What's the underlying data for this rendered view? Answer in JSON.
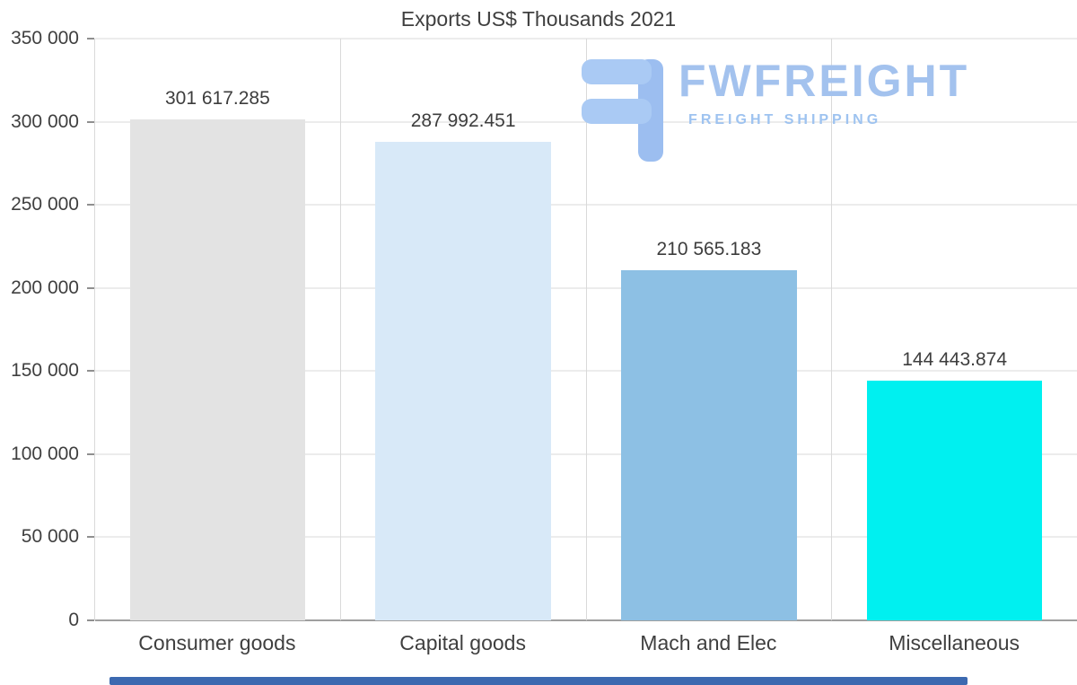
{
  "chart_data": {
    "type": "bar",
    "title": "Exports US$ Thousands 2021",
    "categories": [
      "Consumer goods",
      "Capital goods",
      "Mach and Elec",
      "Miscellaneous"
    ],
    "values": [
      301617.285,
      287992.451,
      210565.183,
      144443.874
    ],
    "value_labels": [
      "301 617.285",
      "287 992.451",
      "210 565.183",
      "144 443.874"
    ],
    "bar_colors": [
      "#e3e3e3",
      "#d8e9f8",
      "#8dc0e4",
      "#00f0f0"
    ],
    "xlabel": "",
    "ylabel": "",
    "ylim": [
      0,
      350000
    ],
    "yticks": [
      {
        "value": 350000,
        "label": "350 000"
      },
      {
        "value": 300000,
        "label": "300 000"
      },
      {
        "value": 250000,
        "label": "250 000"
      },
      {
        "value": 200000,
        "label": "200 000"
      },
      {
        "value": 150000,
        "label": "150 000"
      },
      {
        "value": 100000,
        "label": "100 000"
      },
      {
        "value": 50000,
        "label": "50 000"
      },
      {
        "value": 0,
        "label": "0"
      }
    ],
    "grid": "horizontal and vertical light gray gridlines",
    "legend": "none"
  },
  "watermark": {
    "brand": "FWFREIGHT",
    "tagline": "FREIGHT SHIPPING",
    "color": "#a3c2ee"
  },
  "footer": {
    "scrollbar_color": "#3c69b0"
  }
}
